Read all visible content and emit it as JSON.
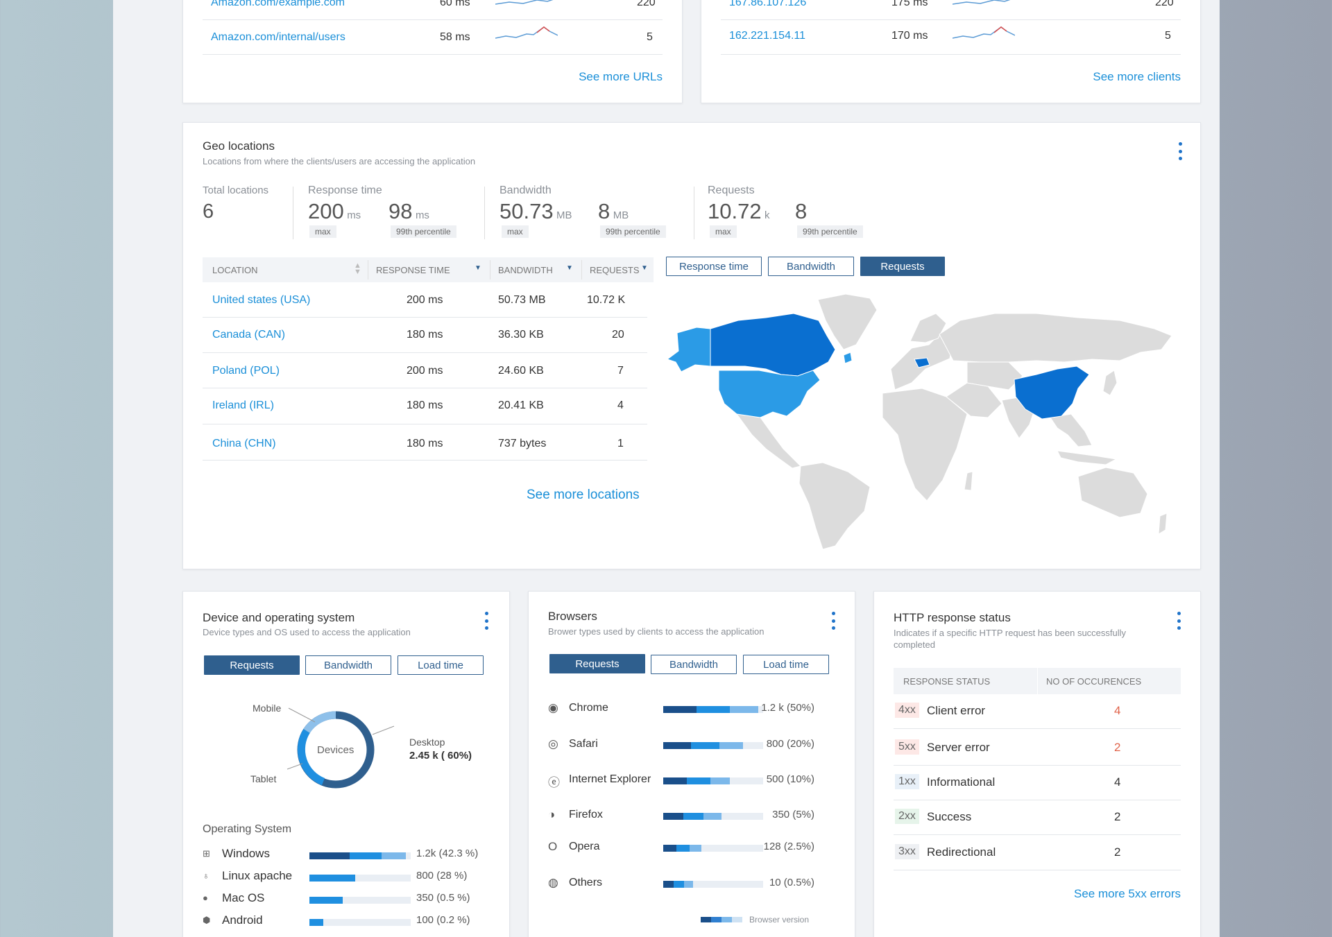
{
  "urls_card": {
    "rows": [
      {
        "url": "Amazon.com/example.com",
        "time": "60 ms",
        "count": "220"
      },
      {
        "url": "Amazon.com/internal/users",
        "time": "58 ms",
        "count": "5"
      }
    ],
    "see_more": "See more URLs"
  },
  "clients_card": {
    "rows": [
      {
        "ip": "167.86.107.126",
        "time": "175 ms",
        "count": "220"
      },
      {
        "ip": "162.221.154.11",
        "time": "170 ms",
        "count": "5"
      }
    ],
    "see_more": "See more clients"
  },
  "geo": {
    "title": "Geo locations",
    "subtitle": "Locations from where the clients/users are accessing the application",
    "total_label": "Total locations",
    "total_value": "6",
    "resp_label": "Response time",
    "resp_max": "200",
    "resp_max_unit": "ms",
    "resp_max_tag": "max",
    "resp_p99": "98",
    "resp_p99_unit": "ms",
    "resp_p99_tag": "99th percentile",
    "bw_label": "Bandwidth",
    "bw_max": "50.73",
    "bw_max_unit": "MB",
    "bw_max_tag": "max",
    "bw_p99": "8",
    "bw_p99_unit": "MB",
    "bw_p99_tag": "99th percentile",
    "req_label": "Requests",
    "req_max": "10.72",
    "req_max_unit": "k",
    "req_max_tag": "max",
    "req_p99": "8",
    "req_p99_tag": "99th percentile",
    "columns": [
      "LOCATION",
      "RESPONSE TIME",
      "BANDWIDTH",
      "REQUESTS"
    ],
    "rows": [
      {
        "loc": "United states (USA)",
        "time": "200 ms",
        "bw": "50.73 MB",
        "req": "10.72 K"
      },
      {
        "loc": "Canada (CAN)",
        "time": "180 ms",
        "bw": "36.30 KB",
        "req": "20"
      },
      {
        "loc": "Poland (POL)",
        "time": "200 ms",
        "bw": "24.60 KB",
        "req": "7"
      },
      {
        "loc": "Ireland (IRL)",
        "time": "180 ms",
        "bw": "20.41 KB",
        "req": "4"
      },
      {
        "loc": "China (CHN)",
        "time": "180 ms",
        "bw": "737 bytes",
        "req": "1"
      }
    ],
    "see_more": "See more locations",
    "toggles": [
      "Response time",
      "Bandwidth",
      "Requests"
    ],
    "active_toggle": "Requests",
    "map_colors": {
      "highlight_dark": "#0a6fd0",
      "highlight_light": "#2b9be6",
      "land": "#dcdcdc"
    }
  },
  "device": {
    "title": "Device and operating system",
    "subtitle": "Device types and OS used to access the application",
    "toggles": [
      "Requests",
      "Bandwidth",
      "Load time"
    ],
    "donut_center": "Devices",
    "label_mobile": "Mobile",
    "label_tablet": "Tablet",
    "label_desktop": "Desktop",
    "desktop_value": "2.45 k ( 60%)",
    "os_heading": "Operating System",
    "os": [
      {
        "name": "Windows",
        "value": "1.2k (42.3 %)",
        "share": 0.95
      },
      {
        "name": "Linux apache",
        "value": "800 (28 %)",
        "share": 0.45
      },
      {
        "name": "Mac OS",
        "value": "350 (0.5 %)",
        "share": 0.33
      },
      {
        "name": "Android",
        "value": "100 (0.2 %)",
        "share": 0.14
      }
    ]
  },
  "browsers": {
    "title": "Browsers",
    "subtitle": "Brower types used by clients to access the application",
    "toggles": [
      "Requests",
      "Bandwidth",
      "Load time"
    ],
    "items": [
      {
        "name": "Chrome",
        "value": "1.2 k (50%)",
        "share": 0.95
      },
      {
        "name": "Safari",
        "value": "800 (20%)",
        "share": 0.8
      },
      {
        "name": "Internet Explorer",
        "value": "500 (10%)",
        "share": 0.67
      },
      {
        "name": "Firefox",
        "value": "350 (5%)",
        "share": 0.58
      },
      {
        "name": "Opera",
        "value": "128 (2.5%)",
        "share": 0.38
      },
      {
        "name": "Others",
        "value": "10 (0.5%)",
        "share": 0.3
      }
    ],
    "legend": "Browser version"
  },
  "http": {
    "title": "HTTP response status",
    "subtitle": "Indicates if a specific HTTP request has been successfully completed",
    "columns": [
      "RESPONSE STATUS",
      "NO OF OCCURENCES"
    ],
    "rows": [
      {
        "code": "4xx",
        "label": "Client error",
        "count": "4",
        "alert": true
      },
      {
        "code": "5xx",
        "label": "Server error",
        "count": "2",
        "alert": true
      },
      {
        "code": "1xx",
        "label": "Informational",
        "count": "4",
        "alert": false
      },
      {
        "code": "2xx",
        "label": "Success",
        "count": "2",
        "alert": false
      },
      {
        "code": "3xx",
        "label": "Redirectional",
        "count": "2",
        "alert": false
      }
    ],
    "see_more": "See more 5xx errors"
  }
}
